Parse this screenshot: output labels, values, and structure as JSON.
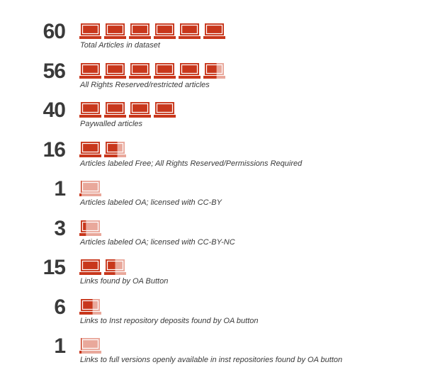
{
  "chart_data": {
    "type": "pictogram",
    "unit_per_icon": 10,
    "icon": "laptop-icon",
    "colors": {
      "full": "#c8371c",
      "partial": "#e9a89b"
    },
    "rows": [
      {
        "value": 60,
        "label": "Total Articles in dataset"
      },
      {
        "value": 56,
        "label": "All Rights Reserved/restricted articles"
      },
      {
        "value": 40,
        "label": "Paywalled articles"
      },
      {
        "value": 16,
        "label": "Articles labeled Free; All Rights Reserved/Permissions Required"
      },
      {
        "value": 1,
        "label": "Articles labeled OA; licensed with CC-BY"
      },
      {
        "value": 3,
        "label": "Articles labeled OA; licensed with CC-BY-NC"
      },
      {
        "value": 15,
        "label": "Links found by OA Button"
      },
      {
        "value": 6,
        "label": "Links to Inst repository deposits found by OA button"
      },
      {
        "value": 1,
        "label": "Links to full versions openly available in inst repositories found by OA button"
      }
    ]
  }
}
